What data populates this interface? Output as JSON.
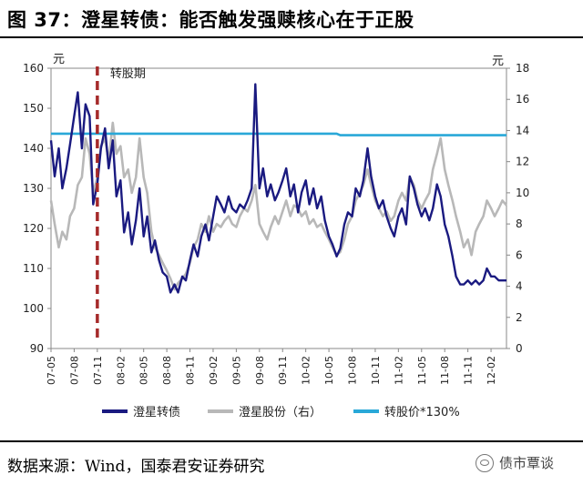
{
  "figure": {
    "title": "图 37：澄星转债：能否触发强赎核心在于正股",
    "source": "数据来源：Wind，国泰君安证券研究",
    "watermark": "债市覃谈",
    "watermark_icon": "wechat-icon"
  },
  "chart_data": {
    "type": "line",
    "left_unit": "元",
    "right_unit": "元",
    "left_ylim": [
      90,
      160
    ],
    "left_yticks": [
      90,
      100,
      110,
      120,
      130,
      140,
      150,
      160
    ],
    "right_ylim": [
      0,
      18
    ],
    "right_yticks": [
      0,
      2,
      4,
      6,
      8,
      10,
      12,
      14,
      16,
      18
    ],
    "x_range": [
      "2007-05",
      "2012-04"
    ],
    "xticks": [
      "07-05",
      "07-08",
      "07-11",
      "08-02",
      "08-05",
      "08-08",
      "08-11",
      "09-02",
      "09-05",
      "09-08",
      "09-11",
      "10-02",
      "10-05",
      "10-08",
      "10-11",
      "11-02",
      "11-05",
      "11-08",
      "11-11",
      "12-02"
    ],
    "grid": false,
    "legend_position": "bottom",
    "annotation": {
      "label": "转股期",
      "x": "2007-11",
      "style": "dashed",
      "color": "#a52a2a"
    },
    "series": [
      {
        "name": "澄星转债",
        "axis": "left",
        "color": "#1a1a80",
        "points": [
          [
            "2007-05",
            142
          ],
          [
            "2007-05-15",
            133
          ],
          [
            "2007-06",
            140
          ],
          [
            "2007-06-15",
            130
          ],
          [
            "2007-07",
            135
          ],
          [
            "2007-07-15",
            141
          ],
          [
            "2007-08",
            148
          ],
          [
            "2007-08-15",
            154
          ],
          [
            "2007-09",
            140
          ],
          [
            "2007-09-15",
            151
          ],
          [
            "2007-10",
            148
          ],
          [
            "2007-10-15",
            126
          ],
          [
            "2007-11",
            131
          ],
          [
            "2007-11-15",
            140
          ],
          [
            "2007-12",
            145
          ],
          [
            "2007-12-15",
            135
          ],
          [
            "2008-01",
            142
          ],
          [
            "2008-01-15",
            128
          ],
          [
            "2008-02",
            132
          ],
          [
            "2008-02-15",
            119
          ],
          [
            "2008-03",
            124
          ],
          [
            "2008-03-15",
            116
          ],
          [
            "2008-04",
            122
          ],
          [
            "2008-04-15",
            130
          ],
          [
            "2008-05",
            118
          ],
          [
            "2008-05-15",
            123
          ],
          [
            "2008-06",
            114
          ],
          [
            "2008-06-15",
            117
          ],
          [
            "2008-07",
            112
          ],
          [
            "2008-07-15",
            109
          ],
          [
            "2008-08",
            108
          ],
          [
            "2008-08-15",
            104
          ],
          [
            "2008-09",
            106
          ],
          [
            "2008-09-15",
            104
          ],
          [
            "2008-10",
            108
          ],
          [
            "2008-10-15",
            107
          ],
          [
            "2008-11",
            112
          ],
          [
            "2008-11-15",
            116
          ],
          [
            "2008-12",
            113
          ],
          [
            "2008-12-15",
            118
          ],
          [
            "2009-01",
            121
          ],
          [
            "2009-01-15",
            117
          ],
          [
            "2009-02",
            123
          ],
          [
            "2009-02-15",
            128
          ],
          [
            "2009-03",
            126
          ],
          [
            "2009-03-15",
            124
          ],
          [
            "2009-04",
            128
          ],
          [
            "2009-04-15",
            125
          ],
          [
            "2009-05",
            124
          ],
          [
            "2009-05-15",
            126
          ],
          [
            "2009-06",
            125
          ],
          [
            "2009-06-15",
            127
          ],
          [
            "2009-07",
            130
          ],
          [
            "2009-07-15",
            156
          ],
          [
            "2009-08",
            130
          ],
          [
            "2009-08-15",
            135
          ],
          [
            "2009-09",
            128
          ],
          [
            "2009-09-15",
            131
          ],
          [
            "2009-10",
            127
          ],
          [
            "2009-10-15",
            129
          ],
          [
            "2009-11",
            132
          ],
          [
            "2009-11-15",
            135
          ],
          [
            "2009-12",
            128
          ],
          [
            "2009-12-15",
            131
          ],
          [
            "2010-01",
            124
          ],
          [
            "2010-01-15",
            129
          ],
          [
            "2010-02",
            132
          ],
          [
            "2010-02-15",
            126
          ],
          [
            "2010-03",
            130
          ],
          [
            "2010-03-15",
            125
          ],
          [
            "2010-04",
            128
          ],
          [
            "2010-04-15",
            122
          ],
          [
            "2010-05",
            118
          ],
          [
            "2010-05-15",
            116
          ],
          [
            "2010-06",
            113
          ],
          [
            "2010-06-15",
            115
          ],
          [
            "2010-07",
            121
          ],
          [
            "2010-07-15",
            124
          ],
          [
            "2010-08",
            123
          ],
          [
            "2010-08-15",
            130
          ],
          [
            "2010-09",
            128
          ],
          [
            "2010-09-15",
            132
          ],
          [
            "2010-10",
            140
          ],
          [
            "2010-10-15",
            133
          ],
          [
            "2010-11",
            128
          ],
          [
            "2010-11-15",
            125
          ],
          [
            "2010-12",
            127
          ],
          [
            "2010-12-15",
            123
          ],
          [
            "2011-01",
            120
          ],
          [
            "2011-01-15",
            118
          ],
          [
            "2011-02",
            123
          ],
          [
            "2011-02-15",
            125
          ],
          [
            "2011-03",
            121
          ],
          [
            "2011-03-15",
            133
          ],
          [
            "2011-04",
            130
          ],
          [
            "2011-04-15",
            126
          ],
          [
            "2011-05",
            123
          ],
          [
            "2011-05-15",
            125
          ],
          [
            "2011-06",
            122
          ],
          [
            "2011-06-15",
            125
          ],
          [
            "2011-07",
            131
          ],
          [
            "2011-07-15",
            128
          ],
          [
            "2011-08",
            121
          ],
          [
            "2011-08-15",
            118
          ],
          [
            "2011-09",
            113
          ],
          [
            "2011-09-15",
            108
          ],
          [
            "2011-10",
            106
          ],
          [
            "2011-10-15",
            106
          ],
          [
            "2011-11",
            107
          ],
          [
            "2011-11-15",
            106
          ],
          [
            "2011-12",
            107
          ],
          [
            "2011-12-15",
            106
          ],
          [
            "2012-01",
            107
          ],
          [
            "2012-01-15",
            110
          ],
          [
            "2012-02",
            108
          ],
          [
            "2012-02-15",
            108
          ],
          [
            "2012-03",
            107
          ],
          [
            "2012-03-15",
            107
          ],
          [
            "2012-04",
            107
          ]
        ]
      },
      {
        "name": "澄星股份（右）",
        "axis": "right",
        "color": "#b8b8b8",
        "points": [
          [
            "2007-05",
            9.5
          ],
          [
            "2007-05-15",
            8
          ],
          [
            "2007-06",
            6.5
          ],
          [
            "2007-06-15",
            7.5
          ],
          [
            "2007-07",
            7
          ],
          [
            "2007-07-15",
            8.5
          ],
          [
            "2007-08",
            9
          ],
          [
            "2007-08-15",
            10.5
          ],
          [
            "2007-09",
            11
          ],
          [
            "2007-09-15",
            13.5
          ],
          [
            "2007-10",
            12.5
          ],
          [
            "2007-10-15",
            10
          ],
          [
            "2007-11",
            11
          ],
          [
            "2007-11-15",
            13
          ],
          [
            "2007-12",
            13.5
          ],
          [
            "2007-12-15",
            12
          ],
          [
            "2008-01",
            14.5
          ],
          [
            "2008-01-15",
            12.5
          ],
          [
            "2008-02",
            13
          ],
          [
            "2008-02-15",
            11
          ],
          [
            "2008-03",
            11.5
          ],
          [
            "2008-03-15",
            10
          ],
          [
            "2008-04",
            11
          ],
          [
            "2008-04-15",
            13.5
          ],
          [
            "2008-05",
            11
          ],
          [
            "2008-05-15",
            10
          ],
          [
            "2008-06",
            7.5
          ],
          [
            "2008-06-15",
            6.5
          ],
          [
            "2008-07",
            6
          ],
          [
            "2008-07-15",
            5.5
          ],
          [
            "2008-08",
            5
          ],
          [
            "2008-08-15",
            4.5
          ],
          [
            "2008-09",
            3.8
          ],
          [
            "2008-09-15",
            4.2
          ],
          [
            "2008-10",
            4.5
          ],
          [
            "2008-10-15",
            4.8
          ],
          [
            "2008-11",
            5.5
          ],
          [
            "2008-11-15",
            6.5
          ],
          [
            "2008-12",
            7
          ],
          [
            "2008-12-15",
            8
          ],
          [
            "2009-01",
            7.5
          ],
          [
            "2009-01-15",
            8.5
          ],
          [
            "2009-02",
            7.5
          ],
          [
            "2009-02-15",
            8
          ],
          [
            "2009-03",
            7.8
          ],
          [
            "2009-03-15",
            8.2
          ],
          [
            "2009-04",
            8.5
          ],
          [
            "2009-04-15",
            8
          ],
          [
            "2009-05",
            7.8
          ],
          [
            "2009-05-15",
            8.5
          ],
          [
            "2009-06",
            9
          ],
          [
            "2009-06-15",
            8.8
          ],
          [
            "2009-07",
            9.5
          ],
          [
            "2009-07-15",
            10.5
          ],
          [
            "2009-08",
            8
          ],
          [
            "2009-08-15",
            7.5
          ],
          [
            "2009-09",
            7
          ],
          [
            "2009-09-15",
            7.8
          ],
          [
            "2009-10",
            8.5
          ],
          [
            "2009-10-15",
            8
          ],
          [
            "2009-11",
            8.8
          ],
          [
            "2009-11-15",
            9.5
          ],
          [
            "2009-12",
            8.5
          ],
          [
            "2009-12-15",
            9.2
          ],
          [
            "2010-01",
            9
          ],
          [
            "2010-01-15",
            8.5
          ],
          [
            "2010-02",
            8.8
          ],
          [
            "2010-02-15",
            8
          ],
          [
            "2010-03",
            8.3
          ],
          [
            "2010-03-15",
            7.8
          ],
          [
            "2010-04",
            8
          ],
          [
            "2010-04-15",
            7.5
          ],
          [
            "2010-05",
            7
          ],
          [
            "2010-05-15",
            6.5
          ],
          [
            "2010-06",
            6
          ],
          [
            "2010-06-15",
            6.2
          ],
          [
            "2010-07",
            7
          ],
          [
            "2010-07-15",
            8
          ],
          [
            "2010-08",
            8.5
          ],
          [
            "2010-08-15",
            9.5
          ],
          [
            "2010-09",
            10
          ],
          [
            "2010-09-15",
            10.5
          ],
          [
            "2010-10",
            11.5
          ],
          [
            "2010-10-15",
            10.5
          ],
          [
            "2010-11",
            9.5
          ],
          [
            "2010-11-15",
            9
          ],
          [
            "2010-12",
            8.5
          ],
          [
            "2010-12-15",
            8.8
          ],
          [
            "2011-01",
            8.2
          ],
          [
            "2011-01-15",
            8.5
          ],
          [
            "2011-02",
            9.5
          ],
          [
            "2011-02-15",
            10
          ],
          [
            "2011-03",
            9.5
          ],
          [
            "2011-03-15",
            11
          ],
          [
            "2011-04",
            10.5
          ],
          [
            "2011-04-15",
            9.5
          ],
          [
            "2011-05",
            9
          ],
          [
            "2011-05-15",
            9.5
          ],
          [
            "2011-06",
            10
          ],
          [
            "2011-06-15",
            11.5
          ],
          [
            "2011-07",
            12.5
          ],
          [
            "2011-07-15",
            13.5
          ],
          [
            "2011-08",
            11.5
          ],
          [
            "2011-08-15",
            10.5
          ],
          [
            "2011-09",
            9.5
          ],
          [
            "2011-09-15",
            8.5
          ],
          [
            "2011-10",
            7.5
          ],
          [
            "2011-10-15",
            6.5
          ],
          [
            "2011-11",
            7
          ],
          [
            "2011-11-15",
            6
          ],
          [
            "2011-12",
            7.5
          ],
          [
            "2011-12-15",
            8
          ],
          [
            "2012-01",
            8.5
          ],
          [
            "2012-01-15",
            9.5
          ],
          [
            "2012-02",
            9
          ],
          [
            "2012-02-15",
            8.5
          ],
          [
            "2012-03",
            9
          ],
          [
            "2012-03-15",
            9.5
          ],
          [
            "2012-04",
            9.2
          ]
        ]
      },
      {
        "name": "转股价*130%",
        "axis": "right",
        "color": "#29a8d8",
        "points": [
          [
            "2007-05",
            13.8
          ],
          [
            "2010-06",
            13.8
          ],
          [
            "2010-06-15",
            13.7
          ],
          [
            "2012-04",
            13.7
          ]
        ]
      }
    ]
  }
}
